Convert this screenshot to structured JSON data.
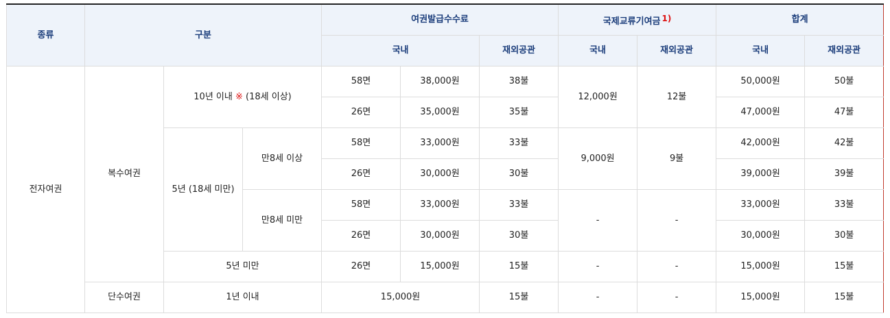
{
  "header": {
    "kind": "종류",
    "category": "구분",
    "issue_fee": "여권발급수수료",
    "contribution": "국제교류기여금",
    "footnote": "1)",
    "total": "합계",
    "domestic": "국내",
    "overseas": "재외공관"
  },
  "body": {
    "passport_type": "전자여권",
    "multiple": "복수여권",
    "single": "단수여권",
    "ten_years": "10년 이내",
    "note_mark": "※",
    "adult_note": "(18세 이상)",
    "five_years_minor": "5년 (18세 미만)",
    "age8_over": "만8세 이상",
    "age8_under": "만8세 미만",
    "under5": "5년 미만",
    "one_year": "1년 이내",
    "pages58": "58면",
    "pages26": "26면",
    "dash": "-",
    "r1": {
      "fee": "38,000원",
      "fee_ov": "38불",
      "contrib": "12,000원",
      "contrib_ov": "12불",
      "total": "50,000원",
      "total_ov": "50불"
    },
    "r2": {
      "fee": "35,000원",
      "fee_ov": "35불",
      "total": "47,000원",
      "total_ov": "47불"
    },
    "r3": {
      "fee": "33,000원",
      "fee_ov": "33불",
      "contrib": "9,000원",
      "contrib_ov": "9불",
      "total": "42,000원",
      "total_ov": "42불"
    },
    "r4": {
      "fee": "30,000원",
      "fee_ov": "30불",
      "total": "39,000원",
      "total_ov": "39불"
    },
    "r5": {
      "fee": "33,000원",
      "fee_ov": "33불",
      "total": "33,000원",
      "total_ov": "33불"
    },
    "r6": {
      "fee": "30,000원",
      "fee_ov": "30불",
      "total": "30,000원",
      "total_ov": "30불"
    },
    "r7": {
      "fee": "15,000원",
      "fee_ov": "15불",
      "total": "15,000원",
      "total_ov": "15불"
    },
    "r8": {
      "fee": "15,000원",
      "fee_ov": "15불",
      "total": "15,000원",
      "total_ov": "15불"
    }
  }
}
